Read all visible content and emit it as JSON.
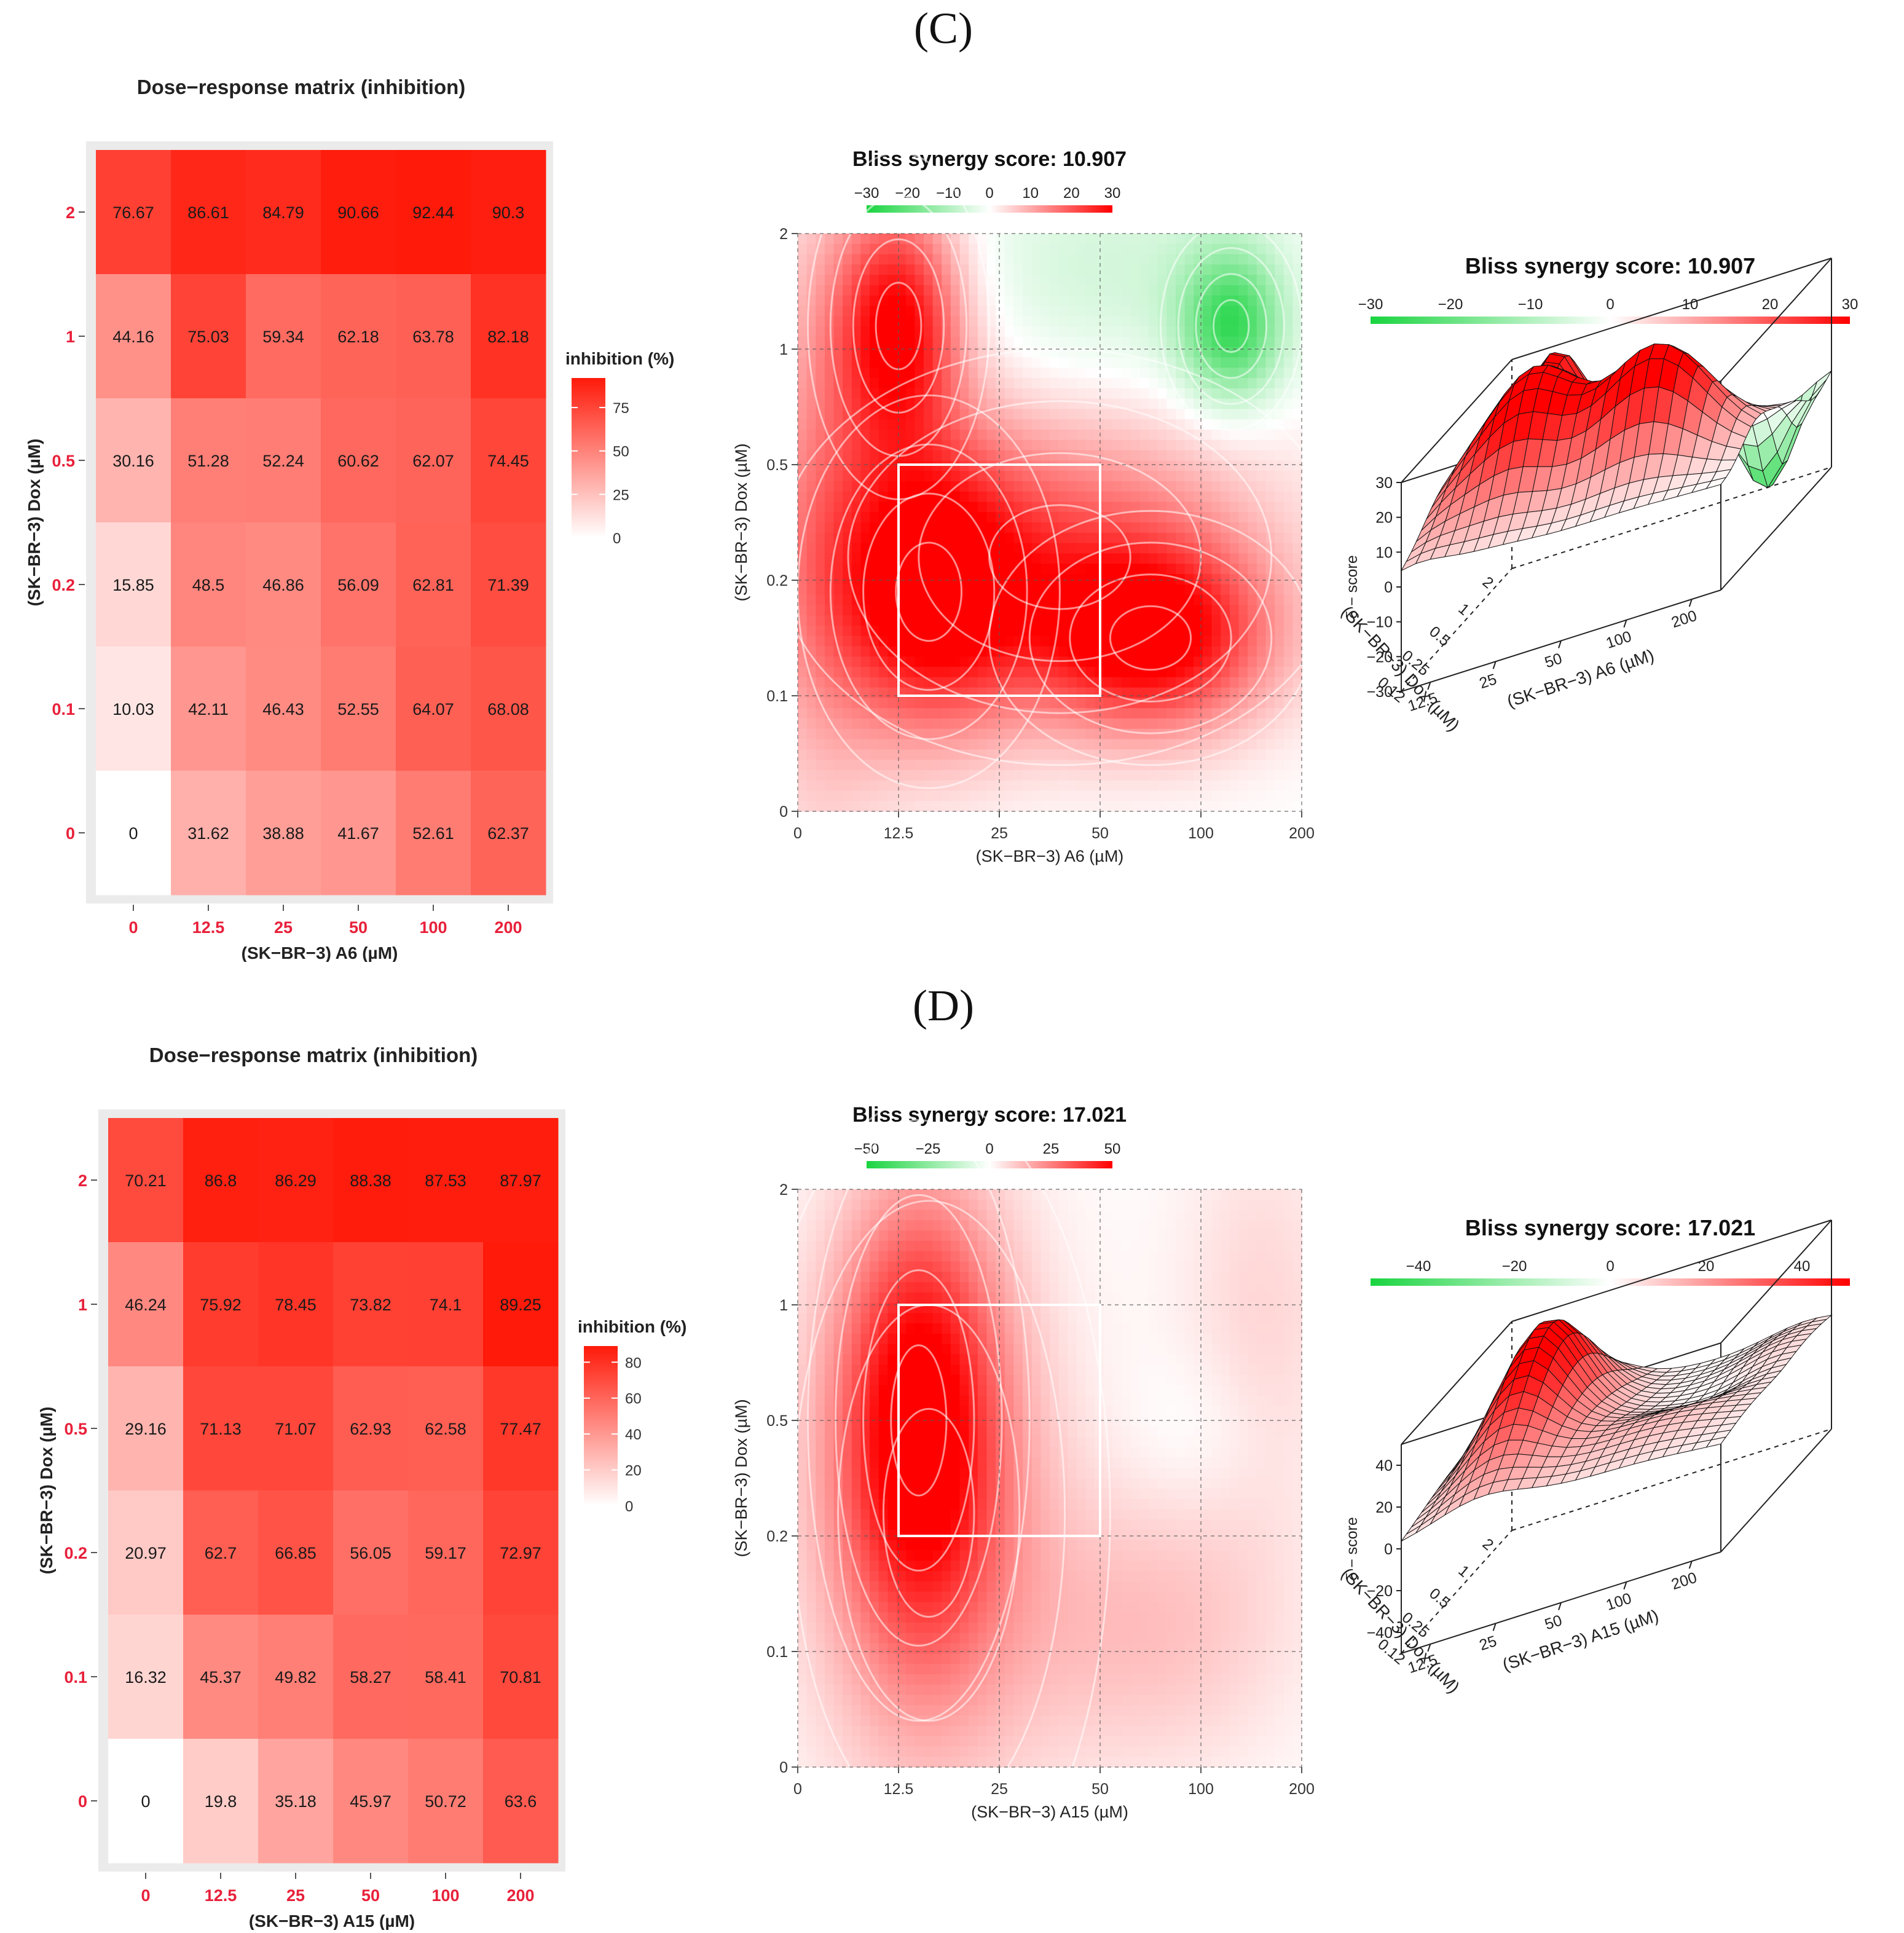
{
  "panels": {
    "c": {
      "label": "(C)"
    },
    "d": {
      "label": "(D)"
    }
  },
  "colors": {
    "heat_high": "#ff1a0a",
    "synergy_pos": "#ff0000",
    "synergy_neg": "#19d43f",
    "red_tick": "#e8203a",
    "grid_bg": "#ebebeb"
  },
  "chart_data": [
    {
      "id": "c-matrix",
      "type": "heatmap",
      "title": "Dose−response matrix (inhibition)",
      "xlabel": "(SK−BR−3) A6 (µM)",
      "ylabel": "(SK−BR−3) Dox (µM)",
      "x_categories": [
        "0",
        "12.5",
        "25",
        "50",
        "100",
        "200"
      ],
      "y_categories": [
        "2",
        "1",
        "0.5",
        "0.2",
        "0.1",
        "0"
      ],
      "values": [
        [
          "76.67",
          "86.61",
          "84.79",
          "90.66",
          "92.44",
          "90.3"
        ],
        [
          "44.16",
          "75.03",
          "59.34",
          "62.18",
          "63.78",
          "82.18"
        ],
        [
          "30.16",
          "51.28",
          "52.24",
          "60.62",
          "62.07",
          "74.45"
        ],
        [
          "15.85",
          "48.5",
          "46.86",
          "56.09",
          "62.81",
          "71.39"
        ],
        [
          "10.03",
          "42.11",
          "46.43",
          "52.55",
          "64.07",
          "68.08"
        ],
        [
          "0",
          "31.62",
          "38.88",
          "41.67",
          "52.61",
          "62.37"
        ]
      ],
      "legend_title": "inhibition (%)",
      "legend_ticks": [
        "75",
        "50",
        "25",
        "0"
      ],
      "legend_max": 92
    },
    {
      "id": "c-contour",
      "type": "heatmap",
      "subtype": "synergy-contour",
      "title": "Bliss synergy score: 10.907",
      "colorbar_ticks": [
        "−30",
        "−20",
        "−10",
        "0",
        "10",
        "20",
        "30"
      ],
      "range": [
        -30,
        30
      ],
      "xlabel": "(SK−BR−3) A6 (µM)",
      "ylabel": "(SK−BR−3) Dox (µM)",
      "x_ticks": [
        "0",
        "12.5",
        "25",
        "50",
        "100",
        "200"
      ],
      "y_ticks": [
        "2",
        "1",
        "0.5",
        "0.2",
        "0.1",
        "0"
      ],
      "hotspots": [
        {
          "x": 1.0,
          "y": 4.2,
          "value": 30,
          "sx": 0.45,
          "sy": 0.75
        },
        {
          "x": 1.3,
          "y": 1.9,
          "value": 28,
          "sx": 0.65,
          "sy": 0.85
        },
        {
          "x": 3.5,
          "y": 1.5,
          "value": 27,
          "sx": 0.8,
          "sy": 0.55
        },
        {
          "x": 2.6,
          "y": 2.2,
          "value": 18,
          "sx": 1.4,
          "sy": 0.9
        },
        {
          "x": 4.3,
          "y": 4.2,
          "value": -24,
          "sx": 0.35,
          "sy": 0.45
        },
        {
          "x": 3.2,
          "y": 4.6,
          "value": -6,
          "sx": 1.2,
          "sy": 0.8
        },
        {
          "x": 0.2,
          "y": 2.5,
          "value": 10,
          "sx": 0.5,
          "sy": 2.0
        }
      ],
      "highlight_box": {
        "x": [
          1,
          3
        ],
        "y": [
          1,
          3
        ]
      }
    },
    {
      "id": "c-surface",
      "type": "surface3d",
      "title": "Bliss synergy score: 10.907",
      "colorbar_ticks": [
        "−30",
        "−20",
        "−10",
        "0",
        "10",
        "20",
        "30"
      ],
      "range": [
        -30,
        30
      ],
      "zlabel": "δ − score",
      "z_ticks": [
        "30",
        "20",
        "10",
        "0",
        "−10",
        "−20",
        "−30"
      ],
      "xlabel": "(SK−BR−3) A6 (µM)",
      "x_ticks": [
        "12.5",
        "25",
        "50",
        "100",
        "200"
      ],
      "ylabel": "(SK−BR−3) Dox (µM)",
      "y_ticks": [
        "2",
        "1",
        "0.5",
        "0.25",
        "0.12"
      ]
    },
    {
      "id": "d-matrix",
      "type": "heatmap",
      "title": "Dose−response matrix (inhibition)",
      "xlabel": "(SK−BR−3) A15 (µM)",
      "ylabel": "(SK−BR−3) Dox (µM)",
      "x_categories": [
        "0",
        "12.5",
        "25",
        "50",
        "100",
        "200"
      ],
      "y_categories": [
        "2",
        "1",
        "0.5",
        "0.2",
        "0.1",
        "0"
      ],
      "values": [
        [
          "70.21",
          "86.8",
          "86.29",
          "88.38",
          "87.53",
          "87.97"
        ],
        [
          "46.24",
          "75.92",
          "78.45",
          "73.82",
          "74.1",
          "89.25"
        ],
        [
          "29.16",
          "71.13",
          "71.07",
          "62.93",
          "62.58",
          "77.47"
        ],
        [
          "20.97",
          "62.7",
          "66.85",
          "56.05",
          "59.17",
          "72.97"
        ],
        [
          "16.32",
          "45.37",
          "49.82",
          "58.27",
          "58.41",
          "70.81"
        ],
        [
          "0",
          "19.8",
          "35.18",
          "45.97",
          "50.72",
          "63.6"
        ]
      ],
      "legend_title": "inhibition (%)",
      "legend_ticks": [
        "80",
        "60",
        "40",
        "20",
        "0"
      ],
      "legend_max": 89
    },
    {
      "id": "d-contour",
      "type": "heatmap",
      "subtype": "synergy-contour",
      "title": "Bliss synergy score: 17.021",
      "colorbar_ticks": [
        "−50",
        "−25",
        "0",
        "25",
        "50"
      ],
      "range": [
        -50,
        50
      ],
      "xlabel": "(SK−BR−3) A15 (µM)",
      "ylabel": "(SK−BR−3) Dox (µM)",
      "x_ticks": [
        "0",
        "12.5",
        "25",
        "50",
        "100",
        "200"
      ],
      "y_ticks": [
        "2",
        "1",
        "0.5",
        "0.2",
        "0.1",
        "0"
      ],
      "hotspots": [
        {
          "x": 1.2,
          "y": 3.0,
          "value": 44,
          "sx": 0.55,
          "sy": 1.3
        },
        {
          "x": 1.3,
          "y": 2.2,
          "value": 20,
          "sx": 0.9,
          "sy": 1.8
        },
        {
          "x": 3.5,
          "y": 1.2,
          "value": 12,
          "sx": 1.0,
          "sy": 0.9
        },
        {
          "x": 4.6,
          "y": 3.9,
          "value": 8,
          "sx": 0.6,
          "sy": 1.3
        },
        {
          "x": 4.0,
          "y": 2.9,
          "value": -4,
          "sx": 0.5,
          "sy": 0.5
        }
      ],
      "highlight_box": {
        "x": [
          1,
          3
        ],
        "y": [
          2,
          4
        ]
      }
    },
    {
      "id": "d-surface",
      "type": "surface3d",
      "title": "Bliss synergy score: 17.021",
      "colorbar_ticks": [
        "−40",
        "−20",
        "0",
        "20",
        "40"
      ],
      "range": [
        -50,
        50
      ],
      "zlabel": "δ − score",
      "z_ticks": [
        "40",
        "20",
        "0",
        "−20",
        "−40"
      ],
      "xlabel": "(SK−BR−3) A15 (µM)",
      "x_ticks": [
        "12.5",
        "25",
        "50",
        "100",
        "200"
      ],
      "ylabel": "(SK−BR−3) Dox (µM)",
      "y_ticks": [
        "2",
        "1",
        "0.5",
        "0.25",
        "0.12"
      ]
    }
  ]
}
